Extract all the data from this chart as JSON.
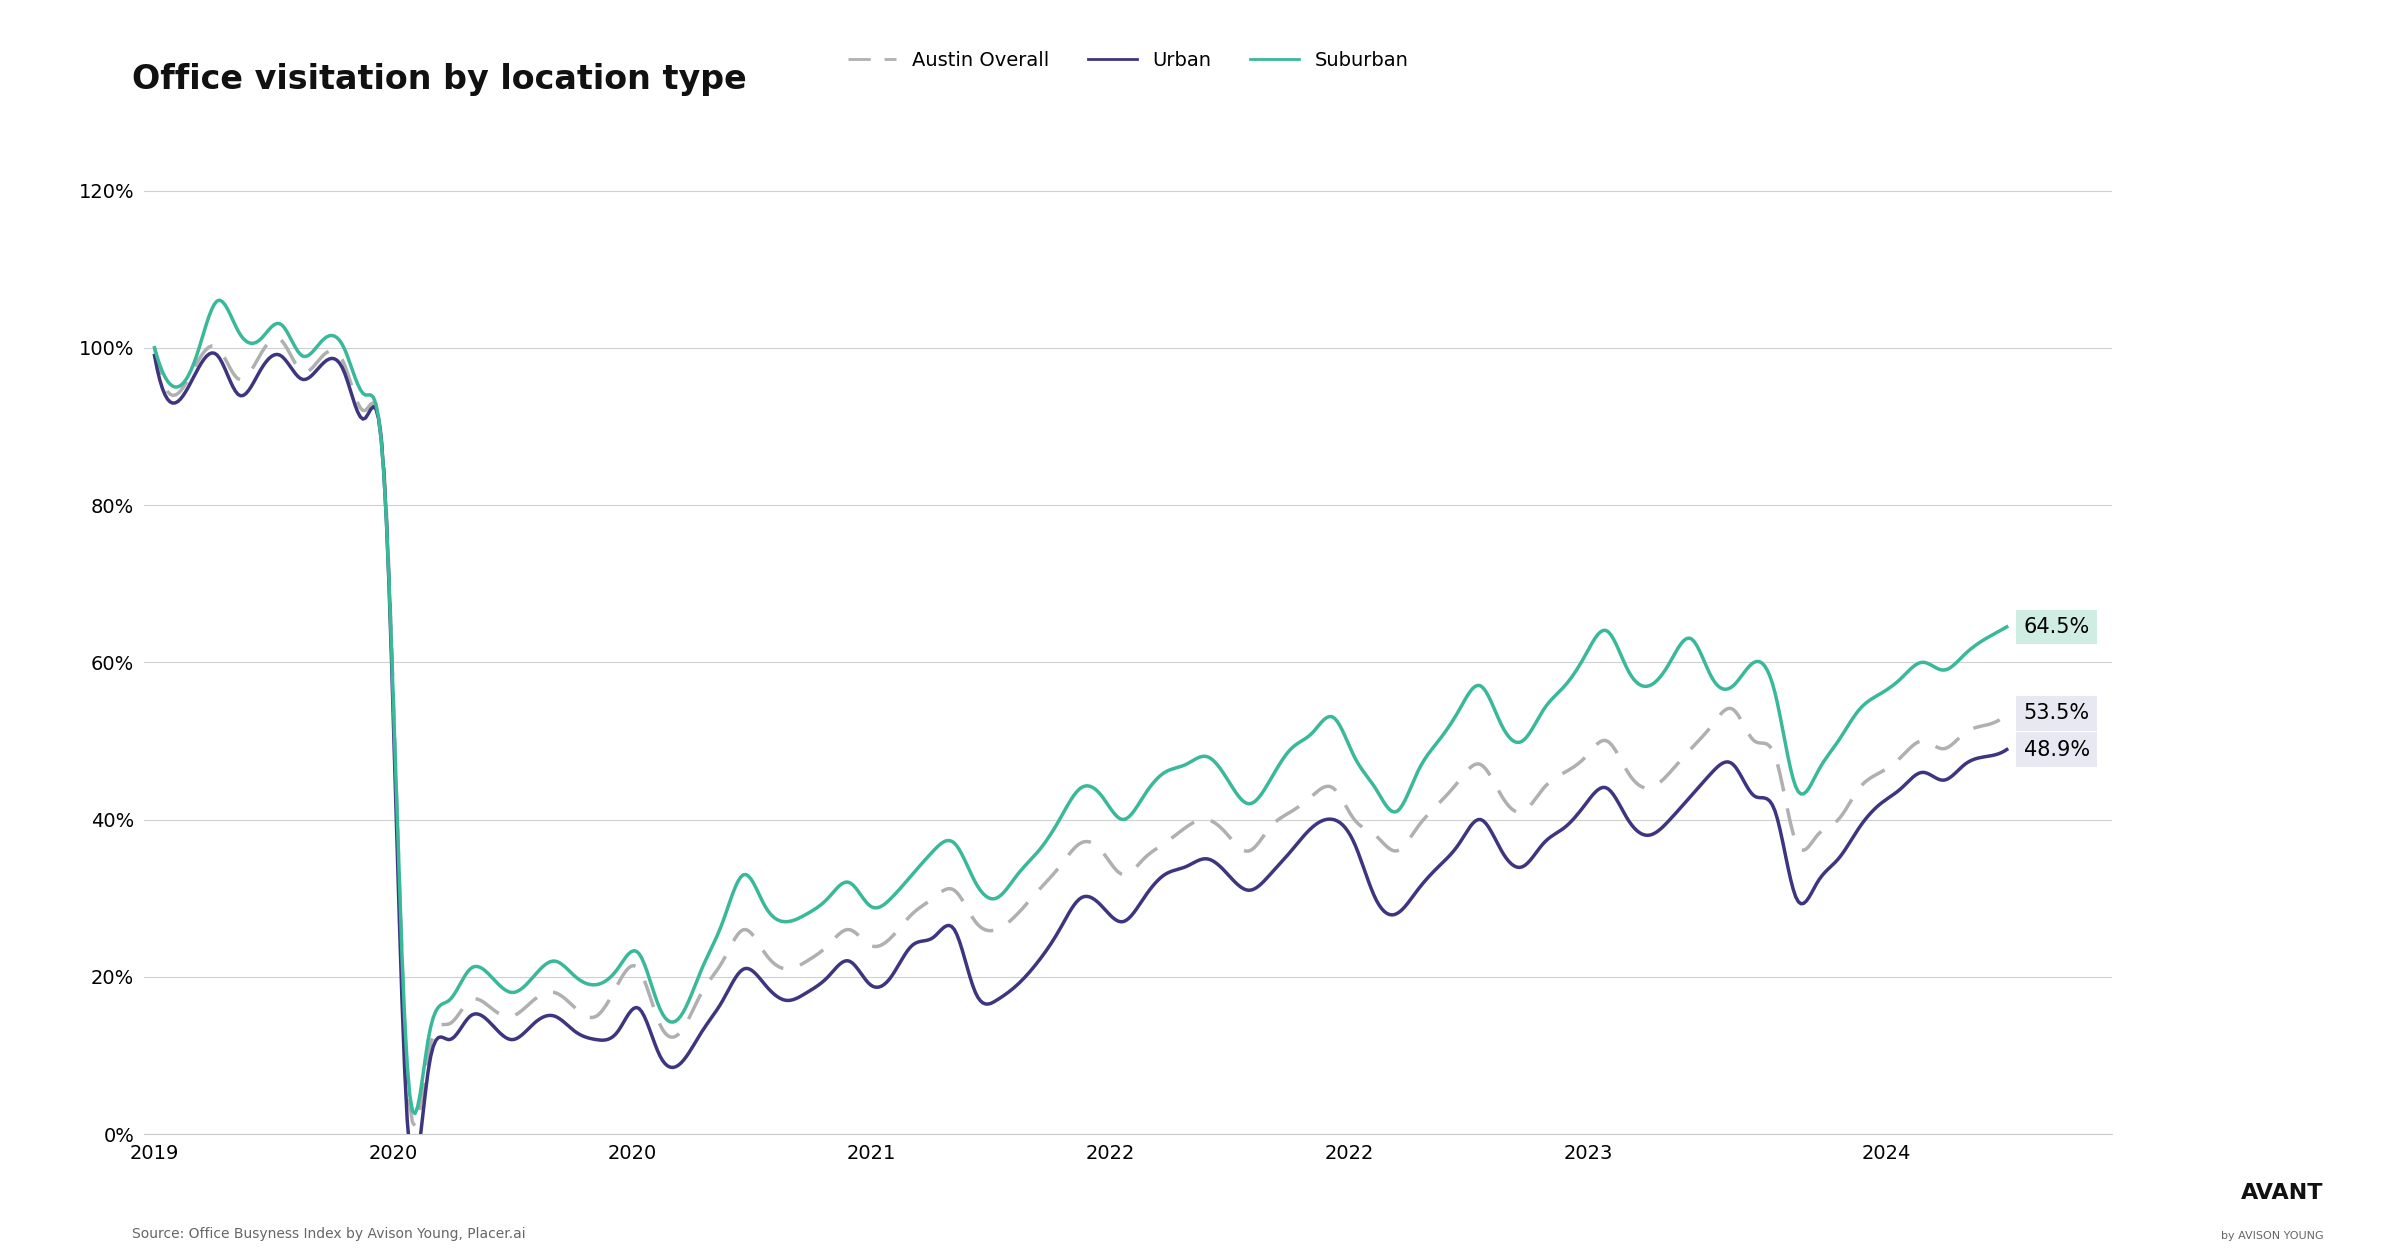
{
  "title": "Office visitation by location type",
  "source": "Source: Office Busyness Index by Avison Young, Placer.ai",
  "colors": {
    "austin_overall": "#b0b0b0",
    "urban": "#3d3580",
    "suburban": "#3ab89a"
  },
  "end_labels": [
    {
      "text": "64.5%",
      "value": 0.645,
      "bg": "#d0ede4"
    },
    {
      "text": "53.5%",
      "value": 0.535,
      "bg": "#e8e8f2"
    },
    {
      "text": "48.9%",
      "value": 0.489,
      "bg": "#e8e8f2"
    }
  ],
  "background_color": "#ffffff",
  "title_fontsize": 24,
  "tick_fontsize": 14,
  "legend_fontsize": 14,
  "label_fontsize": 15,
  "austin_overall": [
    1.0,
    0.94,
    0.98,
    1.0,
    0.96,
    0.99,
    1.01,
    0.97,
    0.99,
    0.98,
    0.92,
    0.8,
    0.08,
    0.1,
    0.14,
    0.17,
    0.16,
    0.15,
    0.17,
    0.18,
    0.16,
    0.15,
    0.19,
    0.21,
    0.14,
    0.13,
    0.18,
    0.22,
    0.26,
    0.23,
    0.21,
    0.22,
    0.24,
    0.26,
    0.24,
    0.25,
    0.28,
    0.3,
    0.31,
    0.27,
    0.26,
    0.28,
    0.31,
    0.34,
    0.37,
    0.36,
    0.33,
    0.35,
    0.37,
    0.39,
    0.4,
    0.38,
    0.36,
    0.39,
    0.41,
    0.43,
    0.44,
    0.4,
    0.38,
    0.36,
    0.39,
    0.42,
    0.45,
    0.47,
    0.43,
    0.41,
    0.44,
    0.46,
    0.48,
    0.5,
    0.46,
    0.44,
    0.46,
    0.49,
    0.52,
    0.54,
    0.5,
    0.48,
    0.37,
    0.38,
    0.4,
    0.44,
    0.46,
    0.48,
    0.5,
    0.49,
    0.51,
    0.52,
    0.535
  ],
  "urban": [
    0.99,
    0.93,
    0.97,
    0.99,
    0.94,
    0.97,
    0.99,
    0.96,
    0.98,
    0.97,
    0.91,
    0.79,
    0.02,
    0.08,
    0.12,
    0.15,
    0.14,
    0.12,
    0.14,
    0.15,
    0.13,
    0.12,
    0.13,
    0.16,
    0.1,
    0.09,
    0.13,
    0.17,
    0.21,
    0.19,
    0.17,
    0.18,
    0.2,
    0.22,
    0.19,
    0.2,
    0.24,
    0.25,
    0.26,
    0.18,
    0.17,
    0.19,
    0.22,
    0.26,
    0.3,
    0.29,
    0.27,
    0.3,
    0.33,
    0.34,
    0.35,
    0.33,
    0.31,
    0.33,
    0.36,
    0.39,
    0.4,
    0.37,
    0.3,
    0.28,
    0.31,
    0.34,
    0.37,
    0.4,
    0.36,
    0.34,
    0.37,
    0.39,
    0.42,
    0.44,
    0.4,
    0.38,
    0.4,
    0.43,
    0.46,
    0.47,
    0.43,
    0.41,
    0.3,
    0.32,
    0.35,
    0.39,
    0.42,
    0.44,
    0.46,
    0.45,
    0.47,
    0.48,
    0.489
  ],
  "suburban": [
    1.0,
    0.95,
    0.99,
    1.06,
    1.02,
    1.01,
    1.03,
    0.99,
    1.01,
    1.0,
    0.94,
    0.79,
    0.09,
    0.12,
    0.17,
    0.21,
    0.2,
    0.18,
    0.2,
    0.22,
    0.2,
    0.19,
    0.21,
    0.23,
    0.16,
    0.15,
    0.21,
    0.27,
    0.33,
    0.29,
    0.27,
    0.28,
    0.3,
    0.32,
    0.29,
    0.3,
    0.33,
    0.36,
    0.37,
    0.32,
    0.3,
    0.33,
    0.36,
    0.4,
    0.44,
    0.43,
    0.4,
    0.43,
    0.46,
    0.47,
    0.48,
    0.45,
    0.42,
    0.45,
    0.49,
    0.51,
    0.53,
    0.48,
    0.44,
    0.41,
    0.46,
    0.5,
    0.54,
    0.57,
    0.52,
    0.5,
    0.54,
    0.57,
    0.61,
    0.64,
    0.59,
    0.57,
    0.6,
    0.63,
    0.58,
    0.57,
    0.6,
    0.56,
    0.44,
    0.46,
    0.5,
    0.54,
    0.56,
    0.58,
    0.6,
    0.59,
    0.61,
    0.63,
    0.645
  ],
  "x_tick_labels": [
    "2019",
    "2020",
    "2020",
    "2021",
    "2022",
    "2022",
    "2023",
    "2024"
  ],
  "x_tick_fracs": [
    0.0,
    0.129,
    0.258,
    0.387,
    0.516,
    0.645,
    0.774,
    0.935
  ]
}
